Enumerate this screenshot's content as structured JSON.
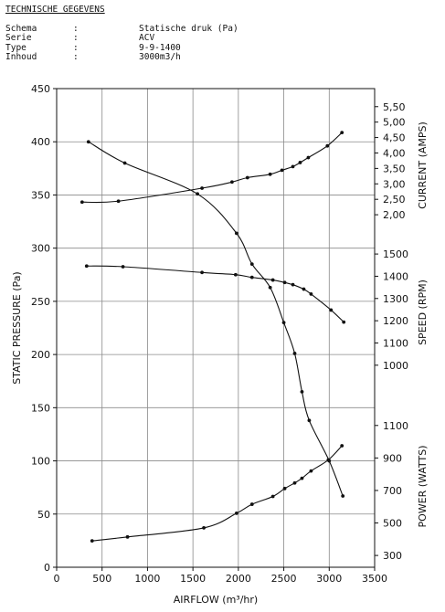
{
  "header": {
    "title": "TECHNISCHE GEGEVENS",
    "specs": [
      {
        "label": "Schema",
        "sep": ":",
        "value": "Statische druk (Pa)"
      },
      {
        "label": "Serie",
        "sep": ":",
        "value": "ACV"
      },
      {
        "label": "Type",
        "sep": ":",
        "value": "9-9-1400"
      },
      {
        "label": "Inhoud",
        "sep": ":",
        "value": "3000m3/h"
      }
    ]
  },
  "chart_data": {
    "type": "line",
    "xlabel": "AIRFLOW (m³/hr)",
    "ylabel": "STATIC PRESSURE (Pa)",
    "xlim": [
      0,
      3500
    ],
    "ylim": [
      0,
      450
    ],
    "x_ticks": [
      0,
      500,
      1000,
      1500,
      2000,
      2500,
      3000,
      3500
    ],
    "y_ticks": [
      0,
      50,
      100,
      150,
      200,
      250,
      300,
      350,
      400,
      450
    ],
    "grid": true,
    "right_axes": [
      {
        "label": "CURRENT (AMPS)",
        "range": [
          1.5,
          5.7
        ],
        "ticks": [
          "2,00",
          "2,50",
          "3,00",
          "3,50",
          "4,00",
          "4,50",
          "5,00",
          "5,50"
        ],
        "tick_values": [
          2.0,
          2.5,
          3.0,
          3.5,
          4.0,
          4.5,
          5.0,
          5.5
        ]
      },
      {
        "label": "SPEED (RPM)",
        "range": [
          950,
          1525
        ],
        "ticks": [
          "1000",
          "1100",
          "1200",
          "1300",
          "1400",
          "1500"
        ],
        "tick_values": [
          1000,
          1100,
          1200,
          1300,
          1400,
          1500
        ]
      },
      {
        "label": "POWER (WATTS)",
        "range": [
          250,
          1200
        ],
        "ticks": [
          "300",
          "500",
          "700",
          "900",
          "1100"
        ],
        "tick_values": [
          300,
          500,
          700,
          900,
          1100
        ]
      }
    ],
    "series": [
      {
        "axis": "pressure",
        "x": [
          350,
          750,
          1550,
          1980,
          2150,
          2350,
          2500,
          2620,
          2700,
          2780,
          3000,
          3150
        ],
        "values": [
          400,
          380,
          351,
          314,
          285,
          263,
          230,
          201,
          165,
          138,
          100,
          67
        ]
      },
      {
        "axis": "current",
        "x": [
          280,
          680,
          1600,
          1930,
          2100,
          2350,
          2480,
          2600,
          2680,
          2770,
          2980,
          3140
        ],
        "values": [
          2.41,
          2.44,
          2.86,
          3.06,
          3.2,
          3.31,
          3.44,
          3.56,
          3.69,
          3.85,
          4.23,
          4.66
        ]
      },
      {
        "axis": "speed",
        "x": [
          330,
          730,
          1600,
          1970,
          2150,
          2380,
          2510,
          2600,
          2720,
          2800,
          3020,
          3160
        ],
        "values": [
          1446,
          1443,
          1417,
          1407,
          1395,
          1383,
          1372,
          1362,
          1342,
          1320,
          1248,
          1194
        ]
      },
      {
        "axis": "power",
        "x": [
          390,
          780,
          1620,
          1980,
          2150,
          2380,
          2510,
          2620,
          2700,
          2800,
          2990,
          3140
        ],
        "values": [
          390,
          414,
          470,
          560,
          615,
          663,
          712,
          746,
          775,
          820,
          888,
          975
        ]
      }
    ]
  }
}
